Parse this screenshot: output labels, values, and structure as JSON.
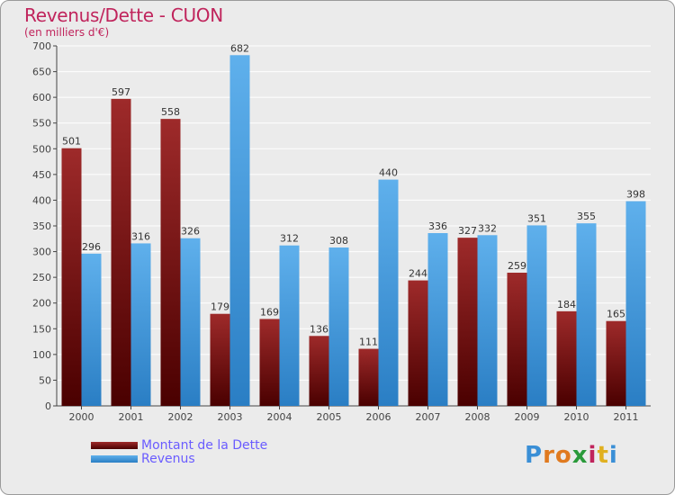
{
  "colors": {
    "title": "#c0245c",
    "dette_top": "#9e2a2a",
    "dette_bottom": "#4a0000",
    "revenus_top": "#5fb0ec",
    "revenus_bottom": "#2a7ec4",
    "legend_text": "#6a5cff"
  },
  "chart_data": {
    "type": "bar",
    "title": "Revenus/Dette - CUON",
    "subtitle": "(en milliers d'€)",
    "xlabel": "",
    "ylabel": "",
    "ylim": [
      0,
      700
    ],
    "yticks": [
      0,
      50,
      100,
      150,
      200,
      250,
      300,
      350,
      400,
      450,
      500,
      550,
      600,
      650,
      700
    ],
    "grid": true,
    "legend_position": "bottom-left",
    "categories": [
      "2000",
      "2001",
      "2002",
      "2003",
      "2004",
      "2005",
      "2006",
      "2007",
      "2008",
      "2009",
      "2010",
      "2011"
    ],
    "series": [
      {
        "name": "Montant de la Dette",
        "values": [
          501,
          597,
          558,
          179,
          169,
          136,
          111,
          244,
          327,
          259,
          184,
          165
        ]
      },
      {
        "name": "Revenus",
        "values": [
          296,
          316,
          326,
          682,
          312,
          308,
          440,
          336,
          332,
          351,
          355,
          398
        ]
      }
    ]
  },
  "logo": {
    "letters": [
      "P",
      "r",
      "o",
      "x",
      "i",
      "t",
      "i"
    ],
    "colors": [
      "#3a8fd6",
      "#e07a1f",
      "#e07a1f",
      "#2a9a3a",
      "#c0245c",
      "#e0b020",
      "#3a8fd6"
    ]
  }
}
